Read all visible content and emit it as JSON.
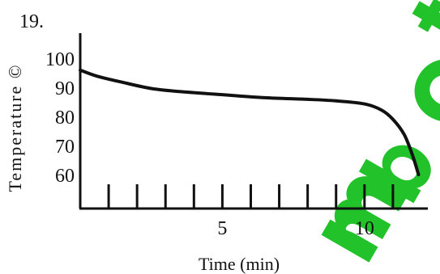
{
  "question_number": "19.",
  "watermark": {
    "text": "mbot",
    "color": "#22c22a"
  },
  "chart_data": {
    "type": "line",
    "title": "",
    "xlabel": "Time (min)",
    "ylabel": "Temperature ©",
    "x_tick_labels": [
      {
        "value": 5,
        "label": "5"
      },
      {
        "value": 10,
        "label": "10"
      }
    ],
    "x_ticks": [
      1,
      2,
      3,
      4,
      5,
      6,
      7,
      8,
      9,
      10,
      11
    ],
    "y_tick_labels": [
      {
        "value": 100,
        "label": "100"
      },
      {
        "value": 90,
        "label": "90"
      },
      {
        "value": 80,
        "label": "80"
      },
      {
        "value": 70,
        "label": "70"
      },
      {
        "value": 60,
        "label": "60"
      }
    ],
    "xlim": [
      0,
      12.2
    ],
    "ylim": [
      50,
      107
    ],
    "grid": false,
    "series": [
      {
        "x": [
          0,
          0.6,
          1.5,
          2.5,
          3.5,
          5,
          6.5,
          8,
          9,
          10,
          10.6,
          11,
          11.4,
          11.7,
          11.9
        ],
        "y": [
          95,
          93,
          91,
          89,
          88,
          87,
          86,
          85.5,
          85,
          84,
          82,
          79,
          74,
          67,
          61
        ]
      }
    ],
    "line_color": "#111111"
  }
}
